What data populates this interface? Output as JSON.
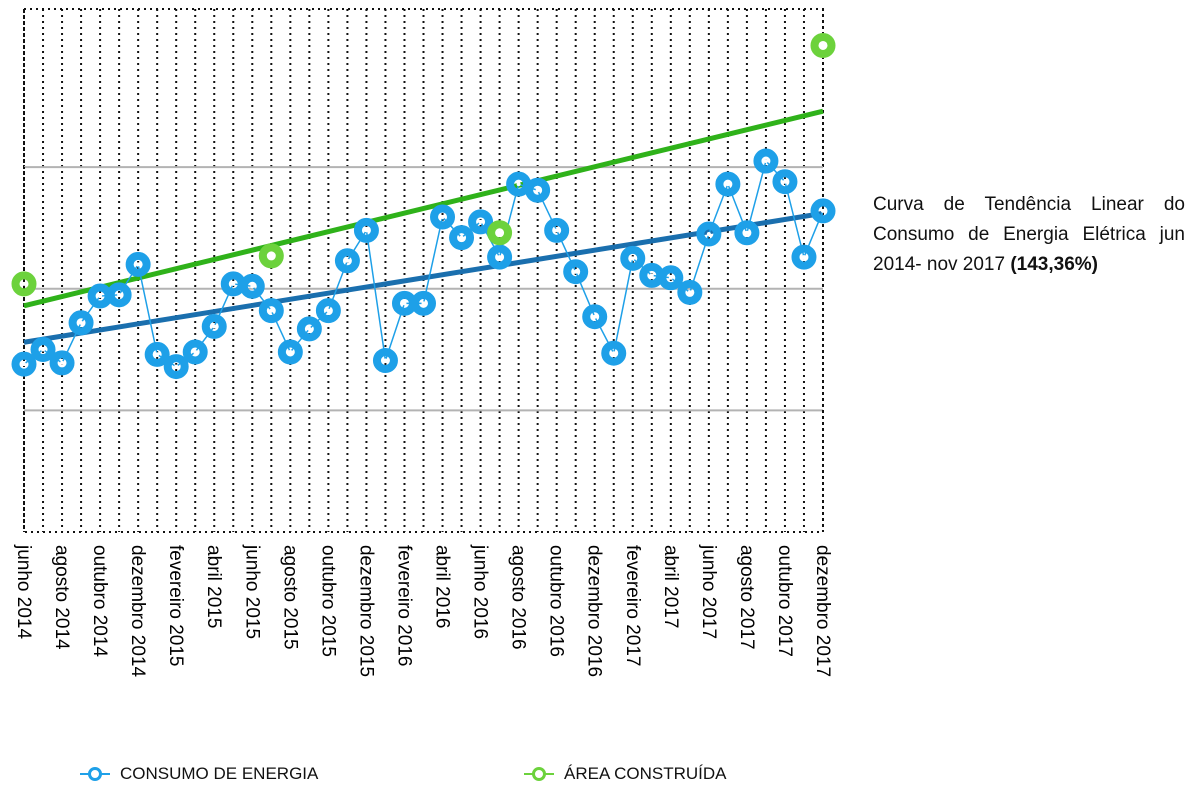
{
  "chart_data": {
    "type": "line",
    "title": "",
    "xlabel": "",
    "ylabel": "",
    "grid": true,
    "legend_position": "bottom",
    "x_tick_labels": [
      "junho 2014",
      "agosto 2014",
      "outubro 2014",
      "dezembro 2014",
      "fevereiro 2015",
      "abril 2015",
      "junho 2015",
      "agosto 2015",
      "outubro 2015",
      "dezembro 2015",
      "fevereiro 2016",
      "abril 2016",
      "junho 2016",
      "agosto 2016",
      "outubro 2016",
      "dezembro 2016",
      "fevereiro 2017",
      "abril 2017",
      "junho 2017",
      "agosto 2017",
      "outubro 2017",
      "dezembro 2017"
    ],
    "series": [
      {
        "name": "CONSUMO DE ENERGIA",
        "color": "#1ea0e8",
        "x": [
          0,
          1,
          2,
          3,
          4,
          5,
          6,
          7,
          8,
          9,
          10,
          11,
          12,
          13,
          14,
          15,
          16,
          17,
          18,
          19,
          20,
          21,
          22,
          23,
          24,
          25,
          26,
          27,
          28,
          29,
          30,
          31,
          32,
          33,
          34,
          35,
          36,
          37,
          38,
          39,
          40,
          41,
          42
        ],
        "values": [
          2.38,
          2.5,
          2.39,
          2.72,
          2.94,
          2.95,
          3.2,
          2.46,
          2.36,
          2.48,
          2.69,
          3.04,
          3.02,
          2.82,
          2.48,
          2.67,
          2.82,
          3.23,
          3.48,
          2.41,
          2.88,
          2.88,
          3.59,
          3.42,
          3.55,
          3.26,
          3.86,
          3.81,
          3.48,
          3.14,
          2.77,
          2.47,
          3.25,
          3.11,
          3.09,
          2.97,
          3.45,
          3.86,
          3.46,
          4.05,
          3.88,
          3.26,
          3.64
        ]
      },
      {
        "name": "ÁREA CONSTRUÍDA",
        "color": "#6cd23c",
        "x": [
          0,
          13,
          25,
          42
        ],
        "values": [
          3.04,
          3.27,
          3.46,
          5.0
        ]
      }
    ],
    "trendlines": [
      {
        "series": "CONSUMO DE ENERGIA",
        "color": "#1a6fae",
        "start": 2.56,
        "end": 3.62
      },
      {
        "series": "ÁREA CONSTRUÍDA",
        "color": "#2fb21a",
        "start": 2.86,
        "end": 4.46
      }
    ],
    "ylim": [
      1,
      5.3
    ],
    "y_gridlines": [
      2,
      3,
      4
    ]
  },
  "annotation": {
    "line1": "Curva de Tendência Linear do Consumo de Energia Elétrica jun 2014- nov 2017",
    "line2": "(143,36%)"
  },
  "legend": {
    "item1": "CONSUMO DE ENERGIA",
    "item2": "ÁREA CONSTRUÍDA"
  }
}
